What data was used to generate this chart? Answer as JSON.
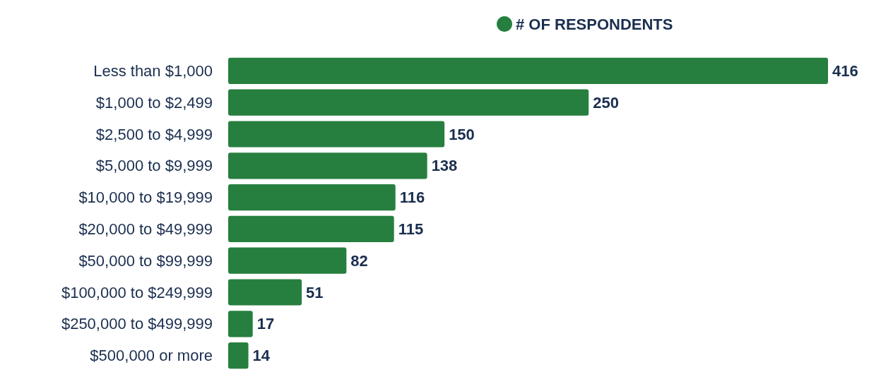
{
  "chart_data": {
    "type": "bar",
    "orientation": "horizontal",
    "categories": [
      "Less than $1,000",
      "$1,000 to $2,499",
      "$2,500 to $4,999",
      "$5,000 to $9,999",
      "$10,000 to $19,999",
      "$20,000 to $49,999",
      "$50,000 to $99,999",
      "$100,000 to $249,999",
      "$250,000 to $499,999",
      "$500,000 or more"
    ],
    "series": [
      {
        "name": "# OF RESPONDENTS",
        "color": "#267f3f",
        "values": [
          416,
          250,
          150,
          138,
          116,
          115,
          82,
          51,
          17,
          14
        ]
      }
    ],
    "data_labels": true,
    "legend": "top"
  }
}
